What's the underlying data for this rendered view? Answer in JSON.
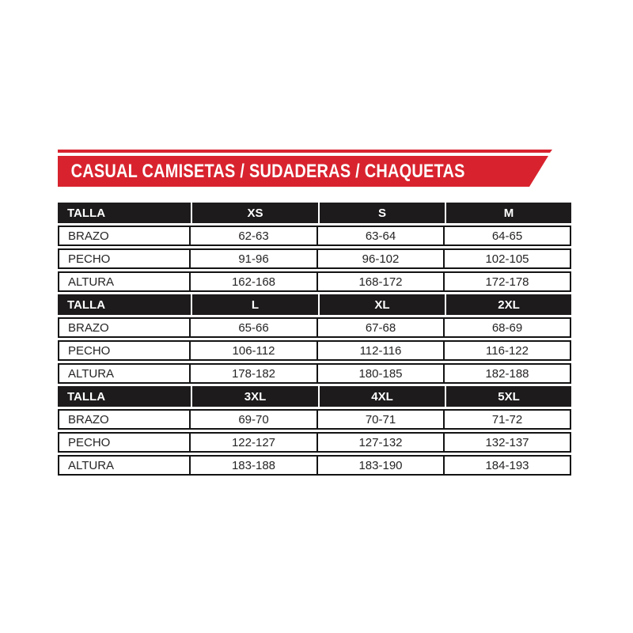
{
  "banner": {
    "title": "CASUAL CAMISETAS / SUDADERAS / CHAQUETAS",
    "bg_color": "#d8232e",
    "text_color": "#ffffff"
  },
  "colors": {
    "accent_red": "#d8232e",
    "header_black": "#1d1b1b",
    "border_black": "#141313",
    "page_background": "#ffffff"
  },
  "table": {
    "header_label": "TALLA",
    "sections": [
      {
        "sizes": [
          "XS",
          "S",
          "M"
        ],
        "rows": [
          {
            "label": "BRAZO",
            "values": [
              "62-63",
              "63-64",
              "64-65"
            ]
          },
          {
            "label": "PECHO",
            "values": [
              "91-96",
              "96-102",
              "102-105"
            ]
          },
          {
            "label": "ALTURA",
            "values": [
              "162-168",
              "168-172",
              "172-178"
            ]
          }
        ]
      },
      {
        "sizes": [
          "L",
          "XL",
          "2XL"
        ],
        "rows": [
          {
            "label": "BRAZO",
            "values": [
              "65-66",
              "67-68",
              "68-69"
            ]
          },
          {
            "label": "PECHO",
            "values": [
              "106-112",
              "112-116",
              "116-122"
            ]
          },
          {
            "label": "ALTURA",
            "values": [
              "178-182",
              "180-185",
              "182-188"
            ]
          }
        ]
      },
      {
        "sizes": [
          "3XL",
          "4XL",
          "5XL"
        ],
        "rows": [
          {
            "label": "BRAZO",
            "values": [
              "69-70",
              "70-71",
              "71-72"
            ]
          },
          {
            "label": "PECHO",
            "values": [
              "122-127",
              "127-132",
              "132-137"
            ]
          },
          {
            "label": "ALTURA",
            "values": [
              "183-188",
              "183-190",
              "184-193"
            ]
          }
        ]
      }
    ]
  }
}
